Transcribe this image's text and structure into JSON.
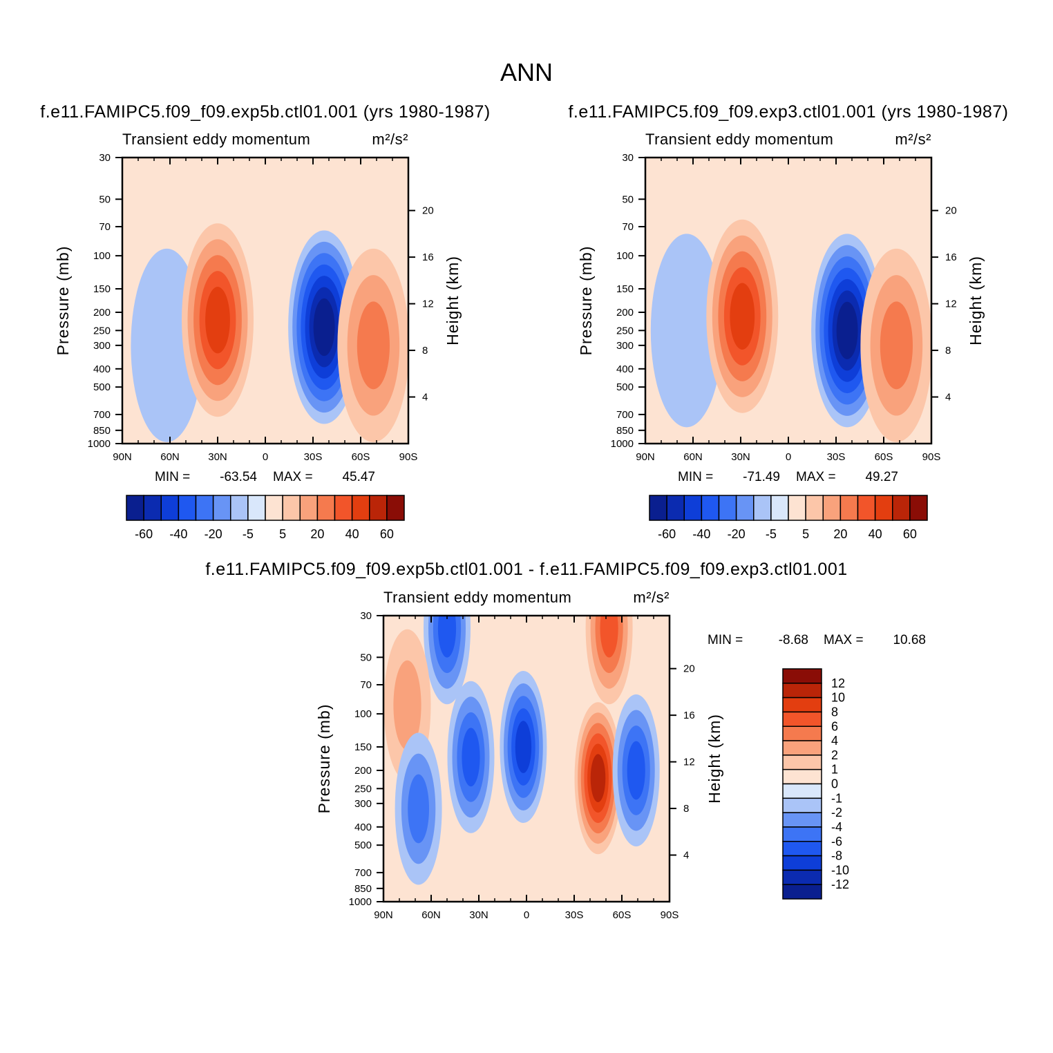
{
  "figure": {
    "title": "ANN",
    "colors": {
      "neg": [
        "#0a1f8f",
        "#0b2bb0",
        "#0e3ed8",
        "#1f58f0",
        "#3d74f5",
        "#6894f5",
        "#aac4f7",
        "#d9e7fb"
      ],
      "pos": [
        "#fde3d2",
        "#fcc6a9",
        "#f9a27c",
        "#f57a4e",
        "#f2552a",
        "#e33e10",
        "#ba2508",
        "#8a0d06"
      ]
    }
  },
  "chart_data": [
    {
      "type": "contour",
      "panel": "top-left",
      "case_title": "f.e11.FAMIPC5.f09_f09.exp5b.ctl01.001 (yrs 1980-1987)",
      "left_label": "Transient eddy momentum",
      "units": "m²/s²",
      "xlabel": "",
      "ylabel": "Pressure (mb)",
      "ylabel_right": "Height (km)",
      "xticks": [
        "90N",
        "60N",
        "30N",
        "0",
        "30S",
        "60S",
        "90S"
      ],
      "yticks": [
        "30",
        "50",
        "70",
        "100",
        "150",
        "200",
        "250",
        "300",
        "400",
        "500",
        "700",
        "850",
        "1000"
      ],
      "yticks_right": [
        "20",
        "16",
        "12",
        "8",
        "4"
      ],
      "stats": {
        "min_label": "MIN =",
        "min": "-63.54",
        "max_label": "MAX =",
        "max": "45.47"
      },
      "colorbar": {
        "orientation": "horizontal",
        "labels": [
          "-60",
          "-40",
          "-20",
          "-5",
          "5",
          "20",
          "40",
          "60"
        ],
        "levels": [
          -60,
          -50,
          -40,
          -30,
          -20,
          -10,
          -5,
          0,
          5,
          10,
          20,
          30,
          40,
          50,
          60
        ]
      },
      "features": [
        {
          "lat": 62,
          "p": 300,
          "value": -8
        },
        {
          "lat": 30,
          "p": 220,
          "value": 45.47
        },
        {
          "lat": -37,
          "p": 240,
          "value": -63.54
        },
        {
          "lat": -68,
          "p": 300,
          "value": 22
        }
      ]
    },
    {
      "type": "contour",
      "panel": "top-right",
      "case_title": "f.e11.FAMIPC5.f09_f09.exp3.ctl01.001 (yrs 1980-1987)",
      "left_label": "Transient eddy momentum",
      "units": "m²/s²",
      "xlabel": "",
      "ylabel": "Pressure (mb)",
      "ylabel_right": "Height (km)",
      "xticks": [
        "90N",
        "60N",
        "30N",
        "0",
        "30S",
        "60S",
        "90S"
      ],
      "yticks": [
        "30",
        "50",
        "70",
        "100",
        "150",
        "200",
        "250",
        "300",
        "400",
        "500",
        "700",
        "850",
        "1000"
      ],
      "yticks_right": [
        "20",
        "16",
        "12",
        "8",
        "4"
      ],
      "stats": {
        "min_label": "MIN =",
        "min": "-71.49",
        "max_label": "MAX =",
        "max": "49.27"
      },
      "colorbar": {
        "orientation": "horizontal",
        "labels": [
          "-60",
          "-40",
          "-20",
          "-5",
          "5",
          "20",
          "40",
          "60"
        ],
        "levels": [
          -60,
          -50,
          -40,
          -30,
          -20,
          -10,
          -5,
          0,
          5,
          10,
          20,
          30,
          40,
          50,
          60
        ]
      },
      "features": [
        {
          "lat": 64,
          "p": 250,
          "value": -6
        },
        {
          "lat": 29,
          "p": 210,
          "value": 49.27
        },
        {
          "lat": -37,
          "p": 250,
          "value": -71.49
        },
        {
          "lat": -68,
          "p": 300,
          "value": 25
        }
      ]
    },
    {
      "type": "contour",
      "panel": "bottom",
      "case_title": "f.e11.FAMIPC5.f09_f09.exp5b.ctl01.001 - f.e11.FAMIPC5.f09_f09.exp3.ctl01.001",
      "left_label": "Transient eddy momentum",
      "units": "m²/s²",
      "xlabel": "",
      "ylabel": "Pressure (mb)",
      "ylabel_right": "Height (km)",
      "xticks": [
        "90N",
        "60N",
        "30N",
        "0",
        "30S",
        "60S",
        "90S"
      ],
      "yticks": [
        "30",
        "50",
        "70",
        "100",
        "150",
        "200",
        "250",
        "300",
        "400",
        "500",
        "700",
        "850",
        "1000"
      ],
      "yticks_right": [
        "20",
        "16",
        "12",
        "8",
        "4"
      ],
      "stats": {
        "min_label": "MIN =",
        "min": "-8.68",
        "max_label": "MAX =",
        "max": "10.68"
      },
      "colorbar": {
        "orientation": "vertical",
        "labels": [
          "12",
          "10",
          "8",
          "6",
          "4",
          "2",
          "1",
          "0",
          "-1",
          "-2",
          "-4",
          "-6",
          "-8",
          "-10",
          "-12"
        ],
        "levels": [
          -12,
          -10,
          -8,
          -6,
          -4,
          -2,
          -1,
          0,
          1,
          2,
          4,
          6,
          8,
          10,
          12
        ]
      },
      "features": [
        {
          "lat": 50,
          "p": 35,
          "value": -6
        },
        {
          "lat": 75,
          "p": 90,
          "value": 3
        },
        {
          "lat": 35,
          "p": 170,
          "value": -6
        },
        {
          "lat": 2,
          "p": 150,
          "value": -8.68
        },
        {
          "lat": 68,
          "p": 320,
          "value": -5
        },
        {
          "lat": -45,
          "p": 220,
          "value": 10.68
        },
        {
          "lat": -52,
          "p": 35,
          "value": 6
        },
        {
          "lat": -69,
          "p": 200,
          "value": -6
        }
      ]
    }
  ]
}
